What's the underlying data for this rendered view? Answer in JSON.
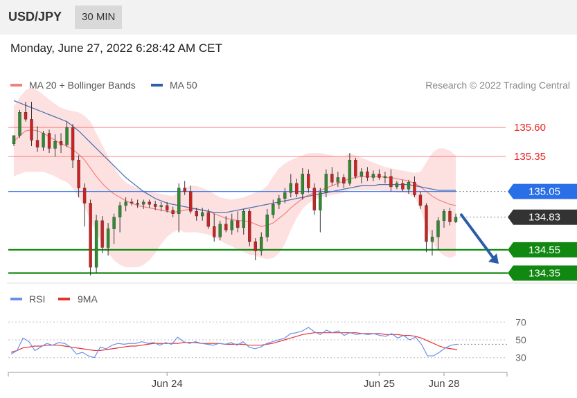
{
  "header": {
    "symbol": "USD/JPY",
    "timeframe": "30 MIN"
  },
  "datetime": "Monday, June 27, 2022 6:28:42 AM CET",
  "colors": {
    "bull": "#2e8b2e",
    "bear": "#cc2222",
    "ma20": "#f08080",
    "bands": "#fddcdc",
    "ma50": "#2f5fa8",
    "resistance": "#ff5555",
    "support": "#118811",
    "current": "#333333",
    "pivot": "#2a6fe8",
    "rsi": "#6b8fe8",
    "rsi_ma": "#e83030"
  },
  "chart_data": [
    {
      "type": "candlestick",
      "title": "",
      "legend": [
        {
          "label": "MA 20 + Bollinger Bands",
          "color": "#f08080"
        },
        {
          "label": "MA 50",
          "color": "#2f5fa8"
        }
      ],
      "legend_position": "top-left",
      "copyright": "Research © 2022 Trading Central",
      "ylim": [
        134.27,
        135.85
      ],
      "x_ticks": [
        {
          "label": "Jun 24",
          "index": 26
        },
        {
          "label": "Jun 25",
          "index": 62
        },
        {
          "label": "Jun 28",
          "index": 73
        }
      ],
      "levels": [
        {
          "label": "135.60",
          "value": 135.6,
          "kind": "resistance"
        },
        {
          "label": "135.35",
          "value": 135.35,
          "kind": "resistance"
        },
        {
          "label": "135.05",
          "value": 135.05,
          "kind": "pivot"
        },
        {
          "label": "134.83",
          "value": 134.83,
          "kind": "current"
        },
        {
          "label": "134.55",
          "value": 134.55,
          "kind": "support"
        },
        {
          "label": "134.35",
          "value": 134.35,
          "kind": "support"
        }
      ],
      "forecast_arrow": {
        "from": 134.85,
        "to": 134.43,
        "direction": "down"
      },
      "candles": [
        [
          135.46,
          135.53,
          135.44,
          135.53
        ],
        [
          135.53,
          135.75,
          135.51,
          135.73
        ],
        [
          135.73,
          135.82,
          135.65,
          135.67
        ],
        [
          135.67,
          135.82,
          135.44,
          135.49
        ],
        [
          135.49,
          135.61,
          135.39,
          135.43
        ],
        [
          135.43,
          135.57,
          135.4,
          135.55
        ],
        [
          135.55,
          135.58,
          135.38,
          135.42
        ],
        [
          135.42,
          135.54,
          135.35,
          135.48
        ],
        [
          135.48,
          135.55,
          135.38,
          135.45
        ],
        [
          135.45,
          135.65,
          135.43,
          135.6
        ],
        [
          135.6,
          135.63,
          135.25,
          135.32
        ],
        [
          135.32,
          135.36,
          135.0,
          135.08
        ],
        [
          135.08,
          135.12,
          134.75,
          134.95
        ],
        [
          134.95,
          134.98,
          134.33,
          134.4
        ],
        [
          134.4,
          134.85,
          134.35,
          134.8
        ],
        [
          134.8,
          134.84,
          134.52,
          134.57
        ],
        [
          134.57,
          134.78,
          134.5,
          134.73
        ],
        [
          134.73,
          134.86,
          134.6,
          134.83
        ],
        [
          134.83,
          134.96,
          134.7,
          134.93
        ],
        [
          134.93,
          135.0,
          134.88,
          134.96
        ],
        [
          134.96,
          134.99,
          134.93,
          134.95
        ],
        [
          134.95,
          134.98,
          134.91,
          134.94
        ],
        [
          134.94,
          134.98,
          134.9,
          134.96
        ],
        [
          134.96,
          134.98,
          134.91,
          134.94
        ],
        [
          134.94,
          134.97,
          134.89,
          134.92
        ],
        [
          134.92,
          134.96,
          134.88,
          134.93
        ],
        [
          134.93,
          134.96,
          134.87,
          134.89
        ],
        [
          134.89,
          134.92,
          134.83,
          134.86
        ],
        [
          134.86,
          135.12,
          134.7,
          135.08
        ],
        [
          135.08,
          135.14,
          135.02,
          135.05
        ],
        [
          135.05,
          135.1,
          134.86,
          134.88
        ],
        [
          134.88,
          134.91,
          134.8,
          134.84
        ],
        [
          134.84,
          134.91,
          134.8,
          134.87
        ],
        [
          134.87,
          134.9,
          134.73,
          134.75
        ],
        [
          134.75,
          134.86,
          134.62,
          134.66
        ],
        [
          134.66,
          134.8,
          134.63,
          134.77
        ],
        [
          134.77,
          134.84,
          134.7,
          134.72
        ],
        [
          134.72,
          134.86,
          134.68,
          134.8
        ],
        [
          134.8,
          134.88,
          134.7,
          134.74
        ],
        [
          134.74,
          134.9,
          134.68,
          134.88
        ],
        [
          134.88,
          134.9,
          134.58,
          134.62
        ],
        [
          134.62,
          134.65,
          134.46,
          134.54
        ],
        [
          134.54,
          134.7,
          134.5,
          134.66
        ],
        [
          134.66,
          134.9,
          134.62,
          134.85
        ],
        [
          134.85,
          134.98,
          134.82,
          134.94
        ],
        [
          134.94,
          135.02,
          134.9,
          134.99
        ],
        [
          134.99,
          135.08,
          134.95,
          135.04
        ],
        [
          135.04,
          135.2,
          135.0,
          135.12
        ],
        [
          135.12,
          135.16,
          135.0,
          135.03
        ],
        [
          135.03,
          135.25,
          134.98,
          135.2
        ],
        [
          135.2,
          135.24,
          135.04,
          135.08
        ],
        [
          135.08,
          135.12,
          134.85,
          134.89
        ],
        [
          134.89,
          135.08,
          134.7,
          135.04
        ],
        [
          135.04,
          135.24,
          135.0,
          135.2
        ],
        [
          135.2,
          135.26,
          135.1,
          135.13
        ],
        [
          135.13,
          135.22,
          135.09,
          135.17
        ],
        [
          135.17,
          135.2,
          135.08,
          135.12
        ],
        [
          135.12,
          135.38,
          135.1,
          135.32
        ],
        [
          135.32,
          135.34,
          135.16,
          135.18
        ],
        [
          135.18,
          135.25,
          135.12,
          135.22
        ],
        [
          135.22,
          135.26,
          135.14,
          135.17
        ],
        [
          135.17,
          135.23,
          135.14,
          135.2
        ],
        [
          135.2,
          135.24,
          135.15,
          135.17
        ],
        [
          135.17,
          135.22,
          135.12,
          135.18
        ],
        [
          135.18,
          135.24,
          135.05,
          135.09
        ],
        [
          135.09,
          135.14,
          135.07,
          135.12
        ],
        [
          135.12,
          135.15,
          135.05,
          135.07
        ],
        [
          135.07,
          135.15,
          135.03,
          135.13
        ],
        [
          135.13,
          135.18,
          135.0,
          135.02
        ],
        [
          135.02,
          135.05,
          134.9,
          134.93
        ],
        [
          134.93,
          134.95,
          134.53,
          134.62
        ],
        [
          134.62,
          134.72,
          134.5,
          134.66
        ],
        [
          134.66,
          134.83,
          134.55,
          134.8
        ],
        [
          134.8,
          134.9,
          134.74,
          134.88
        ],
        [
          134.88,
          134.91,
          134.76,
          134.79
        ],
        [
          134.79,
          134.86,
          134.78,
          134.83
        ]
      ],
      "ma20": [
        135.48,
        135.53,
        135.57,
        135.58,
        135.57,
        135.55,
        135.52,
        135.49,
        135.46,
        135.44,
        135.41,
        135.37,
        135.32,
        135.25,
        135.18,
        135.12,
        135.07,
        135.03,
        135.0,
        134.97,
        134.95,
        134.93,
        134.92,
        134.91,
        134.9,
        134.89,
        134.88,
        134.87,
        134.88,
        134.89,
        134.9,
        134.9,
        134.89,
        134.88,
        134.86,
        134.84,
        134.82,
        134.81,
        134.8,
        134.8,
        134.79,
        134.77,
        134.75,
        134.76,
        134.78,
        134.82,
        134.86,
        134.91,
        134.95,
        134.99,
        135.02,
        135.04,
        135.06,
        135.08,
        135.1,
        135.12,
        135.14,
        135.16,
        135.17,
        135.18,
        135.18,
        135.18,
        135.18,
        135.17,
        135.17,
        135.16,
        135.15,
        135.14,
        135.12,
        135.09,
        135.05,
        135.01,
        134.98,
        134.96,
        134.94,
        134.93
      ],
      "bb_upper": [
        135.78,
        135.86,
        135.92,
        135.94,
        135.92,
        135.88,
        135.84,
        135.8,
        135.77,
        135.75,
        135.74,
        135.73,
        135.7,
        135.65,
        135.55,
        135.45,
        135.35,
        135.26,
        135.18,
        135.13,
        135.1,
        135.08,
        135.06,
        135.05,
        135.04,
        135.03,
        135.02,
        135.01,
        135.05,
        135.08,
        135.1,
        135.1,
        135.08,
        135.06,
        135.03,
        135.0,
        134.99,
        134.98,
        134.99,
        135.0,
        135.02,
        135.04,
        135.06,
        135.1,
        135.18,
        135.25,
        135.29,
        135.32,
        135.34,
        135.36,
        135.38,
        135.38,
        135.38,
        135.37,
        135.36,
        135.35,
        135.35,
        135.38,
        135.36,
        135.34,
        135.32,
        135.3,
        135.28,
        135.26,
        135.25,
        135.24,
        135.23,
        135.22,
        135.21,
        135.22,
        135.3,
        135.38,
        135.42,
        135.42,
        135.4,
        135.36
      ],
      "bb_lower": [
        135.18,
        135.2,
        135.22,
        135.22,
        135.22,
        135.22,
        135.2,
        135.18,
        135.15,
        135.13,
        135.08,
        135.0,
        134.92,
        134.8,
        134.7,
        134.6,
        134.52,
        134.46,
        134.42,
        134.4,
        134.4,
        134.4,
        134.42,
        134.46,
        134.52,
        134.6,
        134.66,
        134.7,
        134.72,
        134.7,
        134.7,
        134.7,
        134.69,
        134.68,
        134.66,
        134.63,
        134.6,
        134.58,
        134.55,
        134.53,
        134.51,
        134.5,
        134.48,
        134.47,
        134.48,
        134.52,
        134.6,
        134.72,
        134.82,
        134.9,
        134.95,
        134.98,
        135.0,
        135.01,
        135.02,
        135.03,
        135.04,
        135.06,
        135.06,
        135.06,
        135.06,
        135.06,
        135.06,
        135.05,
        135.05,
        135.04,
        135.04,
        135.03,
        135.0,
        134.9,
        134.75,
        134.62,
        134.54,
        134.5,
        134.48,
        134.5
      ],
      "ma50": [
        135.83,
        135.81,
        135.79,
        135.77,
        135.75,
        135.73,
        135.71,
        135.69,
        135.67,
        135.65,
        135.61,
        135.57,
        135.52,
        135.47,
        135.42,
        135.37,
        135.32,
        135.27,
        135.22,
        135.17,
        135.13,
        135.09,
        135.05,
        135.02,
        134.99,
        134.97,
        134.95,
        134.94,
        134.93,
        134.92,
        134.91,
        134.9,
        134.89,
        134.88,
        134.87,
        134.87,
        134.87,
        134.88,
        134.89,
        134.9,
        134.91,
        134.92,
        134.93,
        134.94,
        134.95,
        134.96,
        134.97,
        134.98,
        134.99,
        135.0,
        135.01,
        135.02,
        135.03,
        135.04,
        135.05,
        135.06,
        135.07,
        135.08,
        135.09,
        135.1,
        135.1,
        135.1,
        135.11,
        135.11,
        135.11,
        135.11,
        135.11,
        135.11,
        135.1,
        135.09,
        135.08,
        135.07,
        135.06,
        135.06,
        135.06,
        135.06
      ]
    },
    {
      "type": "line",
      "title": "",
      "legend": [
        {
          "label": "RSI",
          "color": "#6b8fe8"
        },
        {
          "label": "9MA",
          "color": "#e83030"
        }
      ],
      "legend_position": "top-left",
      "ylim": [
        22,
        78
      ],
      "y_ticks": [
        70,
        50,
        30
      ],
      "series": [
        {
          "name": "RSI",
          "values": [
            34,
            38,
            52,
            48,
            38,
            42,
            46,
            44,
            47,
            46,
            42,
            34,
            36,
            32,
            30,
            42,
            40,
            44,
            46,
            45,
            46,
            46,
            48,
            46,
            47,
            44,
            47,
            45,
            53,
            48,
            46,
            48,
            46,
            45,
            44,
            46,
            45,
            47,
            44,
            48,
            42,
            40,
            42,
            46,
            48,
            50,
            52,
            57,
            58,
            60,
            64,
            59,
            56,
            61,
            58,
            60,
            55,
            58,
            56,
            57,
            56,
            57,
            55,
            54,
            57,
            52,
            55,
            50,
            53,
            45,
            32,
            32,
            36,
            41,
            44,
            45
          ]
        },
        {
          "name": "9MA",
          "values": [
            36,
            38,
            41,
            42,
            43,
            43,
            44,
            44,
            44,
            43,
            42,
            41,
            40,
            39,
            38,
            38,
            39,
            40,
            41,
            42,
            43,
            43,
            44,
            45,
            46,
            46,
            46,
            46,
            46,
            47,
            47,
            47,
            46,
            46,
            46,
            46,
            45,
            45,
            45,
            45,
            44,
            44,
            44,
            45,
            46,
            48,
            50,
            52,
            54,
            56,
            57,
            58,
            58,
            58,
            58,
            58,
            58,
            58,
            58,
            57,
            57,
            57,
            57,
            56,
            56,
            56,
            55,
            55,
            54,
            52,
            49,
            46,
            43,
            41,
            40,
            39
          ]
        }
      ],
      "x_ticks": [
        {
          "label": "Jun 24",
          "index": 26
        },
        {
          "label": "Jun 25",
          "index": 62
        },
        {
          "label": "Jun 28",
          "index": 73
        }
      ]
    }
  ]
}
